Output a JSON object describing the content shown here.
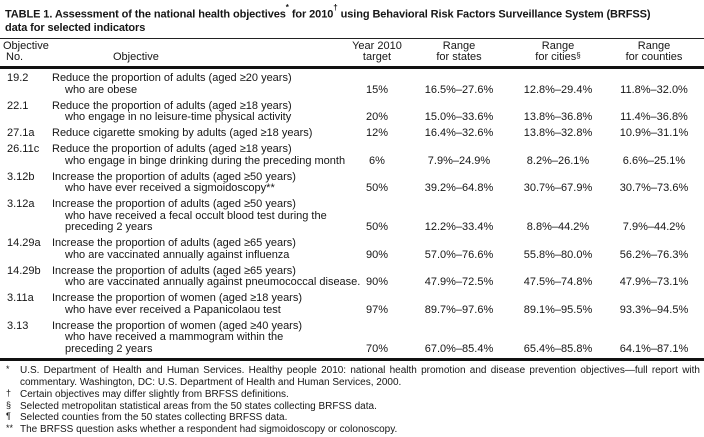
{
  "title": {
    "part1": "TABLE 1. Assessment of the national health objectives",
    "sup1": "*",
    "part2": " for 2010",
    "sup2": "†",
    "part3": " using Behavioral Risk Factors Surveillance System (BRFSS)",
    "line2": "data for selected indicators"
  },
  "table": {
    "headers": [
      {
        "line1": "Objective",
        "line2": "No."
      },
      {
        "line1": "",
        "line2": "Objective"
      },
      {
        "line1": "Year 2010",
        "line2": "target"
      },
      {
        "line1": "Range",
        "line2": "for states"
      },
      {
        "line1": "Range",
        "line2": "for cities",
        "sup": "§"
      },
      {
        "line1": "Range",
        "line2": "for counties"
      }
    ],
    "rows": [
      {
        "no": "19.2",
        "objective_lines": [
          "Reduce the proportion of adults (aged ≥20 years)",
          "who are obese"
        ],
        "target": "15%",
        "states": "16.5%–27.6%",
        "cities": "12.8%–29.4%",
        "counties": "11.8%–32.0%"
      },
      {
        "no": "22.1",
        "objective_lines": [
          "Reduce the proportion of adults (aged ≥18 years)",
          "who engage in no leisure-time physical activity"
        ],
        "target": "20%",
        "states": "15.0%–33.6%",
        "cities": "13.8%–36.8%",
        "counties": "11.4%–36.8%"
      },
      {
        "no": "27.1a",
        "objective_lines": [
          "Reduce cigarette smoking by adults (aged ≥18 years)"
        ],
        "target": "12%",
        "states": "16.4%–32.6%",
        "cities": "13.8%–32.8%",
        "counties": "10.9%–31.1%"
      },
      {
        "no": "26.11c",
        "objective_lines": [
          "Reduce the proportion of adults (aged ≥18 years)",
          "who engage in binge drinking during the preceding month"
        ],
        "target": "6%",
        "states": "7.9%–24.9%",
        "cities": "8.2%–26.1%",
        "counties": "6.6%–25.1%"
      },
      {
        "no": "3.12b",
        "objective_lines": [
          "Increase the proportion of adults (aged ≥50 years)",
          "who have ever received a sigmoidoscopy**"
        ],
        "target": "50%",
        "states": "39.2%–64.8%",
        "cities": "30.7%–67.9%",
        "counties": "30.7%–73.6%"
      },
      {
        "no": "3.12a",
        "objective_lines": [
          "Increase the proportion of adults (aged ≥50 years)",
          "who have received a fecal occult blood test during the",
          "preceding 2 years"
        ],
        "target": "50%",
        "states": "12.2%–33.4%",
        "cities": "8.8%–44.2%",
        "counties": "7.9%–44.2%"
      },
      {
        "no": "14.29a",
        "objective_lines": [
          "Increase the proportion of adults (aged ≥65 years)",
          "who are vaccinated annually against influenza"
        ],
        "target": "90%",
        "states": "57.0%–76.6%",
        "cities": "55.8%–80.0%",
        "counties": "56.2%–76.3%"
      },
      {
        "no": "14.29b",
        "objective_lines": [
          "Increase the proportion of adults (aged ≥65 years)",
          "who are vaccinated annually against pneumococcal disease."
        ],
        "target": "90%",
        "states": "47.9%–72.5%",
        "cities": "47.5%–74.8%",
        "counties": "47.9%–73.1%"
      },
      {
        "no": "3.11a",
        "objective_lines": [
          "Increase the proportion of women (aged ≥18 years)",
          "who have ever received a Papanicolaou test"
        ],
        "target": "97%",
        "states": "89.7%–97.6%",
        "cities": "89.1%–95.5%",
        "counties": "93.3%–94.5%"
      },
      {
        "no": "3.13",
        "objective_lines": [
          "Increase the proportion of women (aged ≥40 years)",
          "who have received a mammogram within the",
          "preceding 2 years"
        ],
        "target": "70%",
        "states": "67.0%–85.4%",
        "cities": "65.4%–85.8%",
        "counties": "64.1%–87.1%"
      }
    ]
  },
  "footnotes": [
    {
      "marker": "*",
      "justify_first": true,
      "lines": [
        "U.S. Department of Health and Human Services. Healthy people 2010: national health promotion and disease prevention objectives—full report with",
        "commentary. Washington, DC: U.S. Department of Health and Human Services, 2000."
      ]
    },
    {
      "marker": "†",
      "lines": [
        "Certain objectives may differ slightly from BRFSS definitions."
      ]
    },
    {
      "marker": "§",
      "lines": [
        "Selected metropolitan statistical areas from the 50 states collecting BRFSS data."
      ]
    },
    {
      "marker": "¶",
      "lines": [
        "Selected counties from the 50 states collecting BRFSS data."
      ]
    },
    {
      "marker": "**",
      "lines": [
        "The BRFSS question asks whether a respondent had sigmoidoscopy or colonoscopy."
      ]
    }
  ]
}
